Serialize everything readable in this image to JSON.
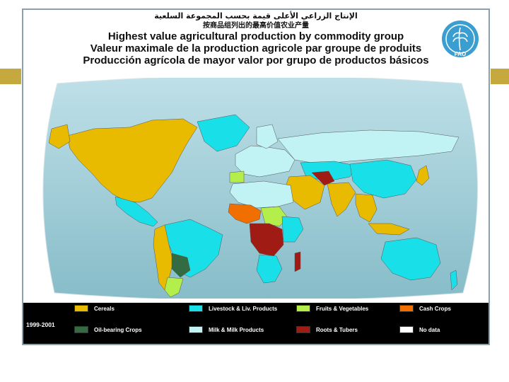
{
  "titles": {
    "arabic": "الإنتاج الزراعي الأعلى قيمة بحسب المجموعة السلعية",
    "chinese": "按商品组列出的最高价值农业产量",
    "english": "Highest value agricultural production by commodity group",
    "french": "Valeur maximale de la production agricole par groupe de produits",
    "spanish": "Producción agrícola de mayor valor por grupo de productos básicos"
  },
  "logo": {
    "icon": "fao-logo-icon",
    "text": "FAO"
  },
  "colors": {
    "ocean_top": "#b9d9e1",
    "ocean_bottom": "#8fc1cc",
    "cereals": "#e8bb00",
    "livestock": "#19e0e8",
    "fruits_vegetables": "#b4ee4b",
    "cash_crops": "#f06f00",
    "oil_bearing": "#336c42",
    "milk": "#c1f3f5",
    "roots_tubers": "#9f1b14",
    "no_data": "#ffffff",
    "frame": "#8aa1ad",
    "accent_gold": "#c6a93e",
    "accent_steel": "#6a8fa0"
  },
  "legend": {
    "period": "1999-2001",
    "items": [
      {
        "key": "cereals",
        "label": "Cereals"
      },
      {
        "key": "livestock",
        "label": "Livestock & Liv. Products"
      },
      {
        "key": "fruits_vegetables",
        "label": "Fruits & Vegetables"
      },
      {
        "key": "cash_crops",
        "label": "Cash Crops"
      },
      {
        "key": "oil_bearing",
        "label": "Oil-bearing Crops"
      },
      {
        "key": "milk",
        "label": "Milk & Milk Products"
      },
      {
        "key": "roots_tubers",
        "label": "Roots & Tubers"
      },
      {
        "key": "no_data",
        "label": "No data"
      }
    ]
  }
}
